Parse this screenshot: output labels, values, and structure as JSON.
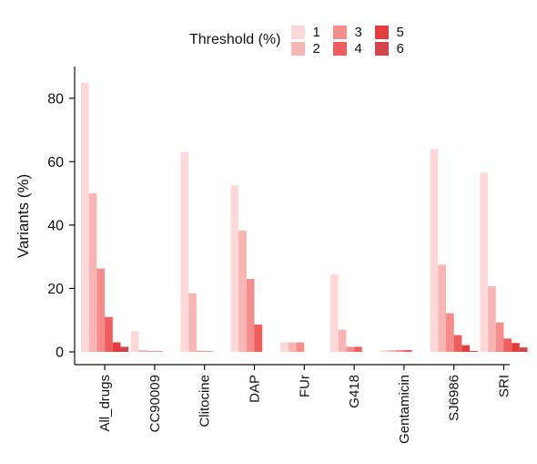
{
  "chart_data": {
    "type": "bar",
    "ylabel": "Variants (%)",
    "xlabel": "",
    "ylim": [
      0,
      90
    ],
    "yticks": [
      0,
      20,
      40,
      60,
      80
    ],
    "legend": {
      "title": "Threshold (%)",
      "placement": "top"
    },
    "categories": [
      "All_drugs",
      "CC90009",
      "Clitocine",
      "DAP",
      "FUr",
      "G418",
      "Gentamicin",
      "SJ6986",
      "SRI"
    ],
    "series": [
      {
        "name": "1",
        "color": "#fcd9d8",
        "values": [
          85,
          6.5,
          63,
          52.5,
          3,
          24.5,
          0.6,
          64,
          56.5
        ]
      },
      {
        "name": "2",
        "color": "#f7b5b4",
        "values": [
          50,
          0.6,
          18.5,
          38.3,
          3,
          7,
          0.6,
          27.5,
          20.7
        ]
      },
      {
        "name": "3",
        "color": "#f48d8c",
        "values": [
          26.3,
          0.3,
          0.3,
          23,
          3,
          1.6,
          0.6,
          12.2,
          9.3
        ]
      },
      {
        "name": "4",
        "color": "#ee5e5e",
        "values": [
          11,
          0.2,
          0.2,
          8.6,
          0,
          1.6,
          0.6,
          5.3,
          4.2
        ]
      },
      {
        "name": "5",
        "color": "#e43d3d",
        "values": [
          3,
          0,
          0,
          0,
          0,
          0,
          0,
          2.1,
          2.8
        ]
      },
      {
        "name": "6",
        "color": "#d4454b",
        "values": [
          1.6,
          0,
          0,
          0,
          0,
          0,
          0,
          0.3,
          1.4
        ]
      }
    ]
  }
}
